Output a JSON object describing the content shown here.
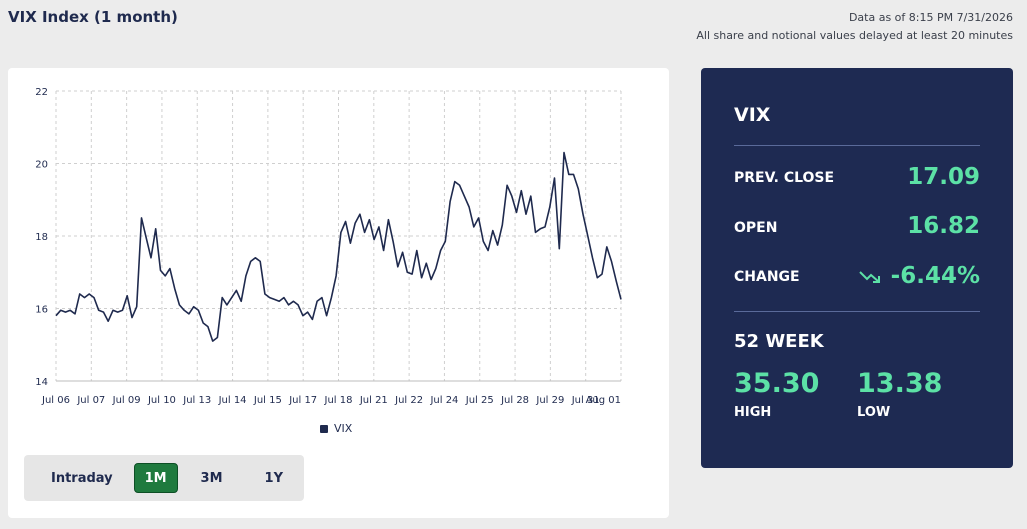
{
  "header": {
    "title": "VIX Index (1 month)",
    "data_as_of": "Data as of 8:15 PM 7/31/2026",
    "delay_note": "All share and notional values delayed at least 20 minutes"
  },
  "chart_data": {
    "type": "line",
    "title": "",
    "xlabel": "",
    "ylabel": "",
    "ylim": [
      14,
      22
    ],
    "y_ticks": [
      14,
      16,
      18,
      20,
      22
    ],
    "x_ticks": [
      "Jul 06",
      "Jul 07",
      "Jul 09",
      "Jul 10",
      "Jul 13",
      "Jul 14",
      "Jul 15",
      "Jul 17",
      "Jul 18",
      "Jul 21",
      "Jul 22",
      "Jul 24",
      "Jul 25",
      "Jul 28",
      "Jul 29",
      "Jul 31",
      "Aug 01"
    ],
    "grid": true,
    "legend": "bottom-center",
    "series": [
      {
        "name": "VIX",
        "color": "#1f2a4e",
        "values": [
          15.8,
          15.95,
          15.9,
          15.95,
          15.85,
          16.4,
          16.3,
          16.4,
          16.3,
          15.95,
          15.9,
          15.65,
          15.95,
          15.9,
          15.95,
          16.35,
          15.75,
          16.05,
          18.5,
          17.95,
          17.4,
          18.2,
          17.05,
          16.9,
          17.1,
          16.55,
          16.1,
          15.95,
          15.85,
          16.05,
          15.95,
          15.6,
          15.5,
          15.1,
          15.2,
          16.3,
          16.1,
          16.3,
          16.5,
          16.2,
          16.9,
          17.3,
          17.4,
          17.3,
          16.4,
          16.3,
          16.25,
          16.2,
          16.3,
          16.1,
          16.2,
          16.1,
          15.8,
          15.9,
          15.7,
          16.2,
          16.3,
          15.8,
          16.3,
          16.9,
          18.1,
          18.4,
          17.8,
          18.35,
          18.6,
          18.1,
          18.45,
          17.9,
          18.25,
          17.6,
          18.45,
          17.85,
          17.15,
          17.55,
          17.0,
          16.95,
          17.6,
          16.85,
          17.25,
          16.8,
          17.1,
          17.6,
          17.85,
          18.95,
          19.5,
          19.4,
          19.1,
          18.8,
          18.25,
          18.5,
          17.85,
          17.6,
          18.15,
          17.75,
          18.3,
          19.4,
          19.1,
          18.65,
          19.25,
          18.6,
          19.1,
          18.1,
          18.2,
          18.25,
          18.8,
          19.6,
          17.65,
          20.3,
          19.7,
          19.7,
          19.3,
          18.6,
          18.0,
          17.4,
          16.85,
          16.95,
          17.7,
          17.3,
          16.75,
          16.25
        ]
      }
    ]
  },
  "range_selector": {
    "buttons": [
      {
        "label": "Intraday",
        "active": false
      },
      {
        "label": "1M",
        "active": true
      },
      {
        "label": "3M",
        "active": false
      },
      {
        "label": "1Y",
        "active": false
      }
    ]
  },
  "stats": {
    "title": "VIX",
    "prev_close_label": "PREV. CLOSE",
    "prev_close_value": "17.09",
    "open_label": "OPEN",
    "open_value": "16.82",
    "change_label": "CHANGE",
    "change_value": "-6.44%",
    "change_icon": "trend-down-icon",
    "week52_title": "52 WEEK",
    "high_value": "35.30",
    "high_label": "HIGH",
    "low_value": "13.38",
    "low_label": "LOW",
    "accent_color": "#5ce1a6"
  }
}
